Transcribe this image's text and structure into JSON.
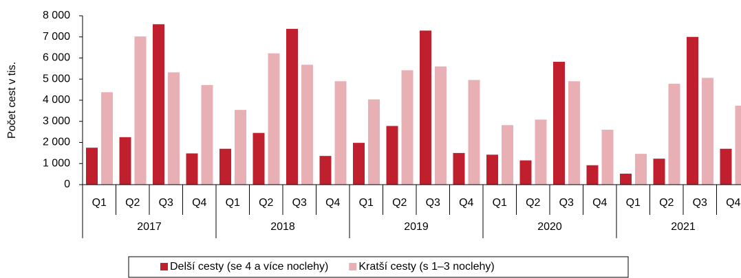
{
  "chart_data": {
    "type": "bar",
    "y_label": "Počet cest v tis.",
    "categories": [
      "Q1",
      "Q2",
      "Q3",
      "Q4",
      "Q1",
      "Q2",
      "Q3",
      "Q4",
      "Q1",
      "Q2",
      "Q3",
      "Q4",
      "Q1",
      "Q2",
      "Q3",
      "Q4",
      "Q1",
      "Q2",
      "Q3",
      "Q4"
    ],
    "groups": [
      "2017",
      "2018",
      "2019",
      "2020",
      "2021"
    ],
    "series": [
      {
        "name": "Delší cesty (se 4 a více noclehy)",
        "color": "#c0202e",
        "values": [
          1750,
          2250,
          7600,
          1480,
          1700,
          2450,
          7380,
          1360,
          1980,
          2780,
          7300,
          1500,
          1420,
          1150,
          5820,
          920,
          520,
          1230,
          7000,
          1700
        ]
      },
      {
        "name": "Kratší cesty (s 1–3 noclehy)",
        "color": "#e8b0b5",
        "values": [
          4380,
          7020,
          5320,
          4720,
          3540,
          6220,
          5680,
          4900,
          4040,
          5420,
          5600,
          4960,
          2820,
          3080,
          4900,
          2600,
          1460,
          4780,
          5060,
          3740
        ]
      }
    ],
    "ylim": [
      0,
      8000
    ],
    "yticks": [
      0,
      {
        "value": 1000,
        "label": "1 000"
      },
      {
        "value": 2000,
        "label": "2 000"
      },
      {
        "value": 3000,
        "label": "3 000"
      },
      {
        "value": 4000,
        "label": "4 000"
      },
      {
        "value": 5000,
        "label": "5 000"
      },
      {
        "value": 6000,
        "label": "6 000"
      },
      {
        "value": 7000,
        "label": "7 000"
      },
      {
        "value": 8000,
        "label": "8 000"
      }
    ],
    "grid": false,
    "legend": "bottom"
  }
}
